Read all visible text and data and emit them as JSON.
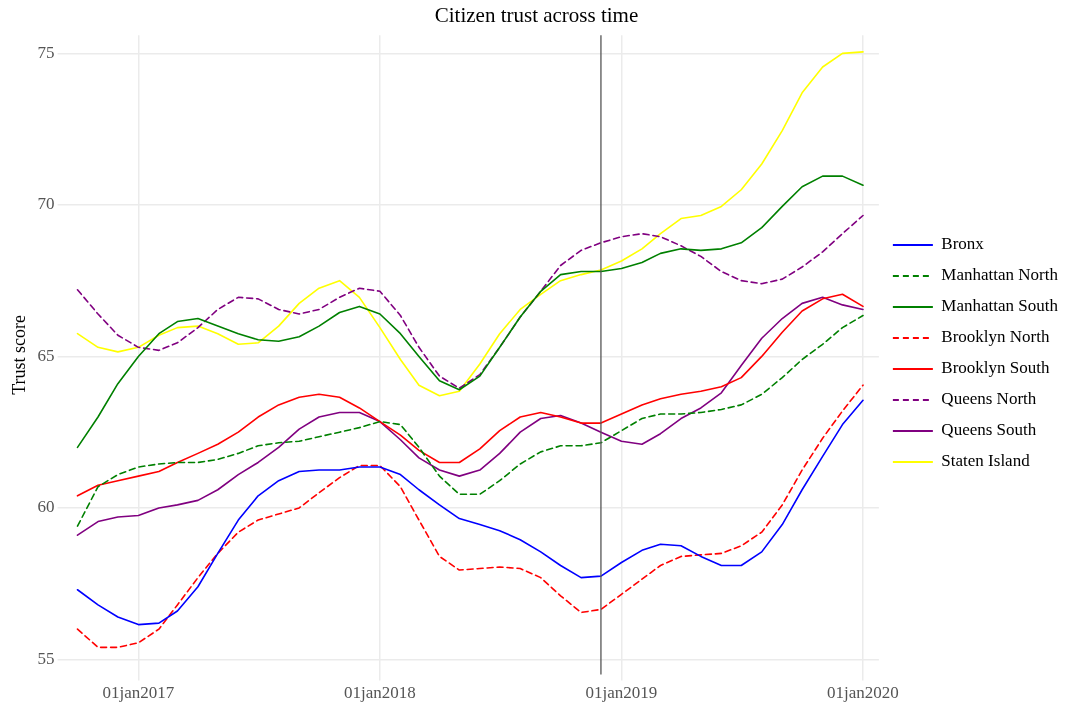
{
  "chart_data": {
    "type": "line",
    "title": "Citizen trust across time",
    "ylabel": "Trust score",
    "x": [
      "2016-10",
      "2016-11",
      "2016-12",
      "2017-01",
      "2017-02",
      "2017-03",
      "2017-04",
      "2017-05",
      "2017-06",
      "2017-07",
      "2017-08",
      "2017-09",
      "2017-10",
      "2017-11",
      "2017-12",
      "2018-01",
      "2018-02",
      "2018-03",
      "2018-04",
      "2018-05",
      "2018-06",
      "2018-07",
      "2018-08",
      "2018-09",
      "2018-10",
      "2018-11",
      "2018-12",
      "2019-01",
      "2019-02",
      "2019-03",
      "2019-04",
      "2019-05",
      "2019-06",
      "2019-07",
      "2019-08",
      "2019-09",
      "2019-10",
      "2019-11",
      "2019-12",
      "2020-01"
    ],
    "xlim": [
      "2016-09-10",
      "2020-01-25"
    ],
    "xticks": [
      {
        "value": "2017-01-01",
        "label": "01jan2017"
      },
      {
        "value": "2018-01-01",
        "label": "01jan2018"
      },
      {
        "value": "2019-01-01",
        "label": "01jan2019"
      },
      {
        "value": "2020-01-01",
        "label": "01jan2020"
      }
    ],
    "ylim": [
      54.5,
      75.6
    ],
    "yticks": [
      55,
      60,
      65,
      70,
      75
    ],
    "grid": true,
    "legend": "right",
    "marker": "none",
    "ref_lines": [
      {
        "axis": "x",
        "value": "2018-12",
        "color": "#555555"
      }
    ],
    "series": [
      {
        "name": "Bronx",
        "color": "#0000ff",
        "line_style": "solid",
        "values": [
          57.3,
          56.8,
          56.4,
          56.15,
          56.2,
          56.6,
          57.4,
          58.5,
          59.6,
          60.4,
          60.9,
          61.2,
          61.25,
          61.25,
          61.35,
          61.35,
          61.1,
          60.6,
          60.1,
          59.65,
          59.45,
          59.25,
          58.95,
          58.55,
          58.1,
          57.7,
          57.75,
          58.2,
          58.6,
          58.8,
          58.75,
          58.4,
          58.1,
          58.1,
          58.55,
          59.45,
          60.6,
          61.7,
          62.75,
          63.55
        ]
      },
      {
        "name": "Manhattan North",
        "color": "#008000",
        "line_style": "dashed",
        "values": [
          59.4,
          60.7,
          61.1,
          61.35,
          61.45,
          61.5,
          61.5,
          61.6,
          61.8,
          62.05,
          62.15,
          62.2,
          62.35,
          62.5,
          62.65,
          62.85,
          62.75,
          62.0,
          61.05,
          60.45,
          60.45,
          60.9,
          61.45,
          61.85,
          62.05,
          62.05,
          62.15,
          62.55,
          62.95,
          63.1,
          63.1,
          63.15,
          63.25,
          63.4,
          63.75,
          64.3,
          64.9,
          65.4,
          65.95,
          66.35
        ]
      },
      {
        "name": "Manhattan South",
        "color": "#008000",
        "line_style": "solid",
        "values": [
          62.0,
          63.0,
          64.1,
          65.0,
          65.75,
          66.15,
          66.25,
          66.0,
          65.75,
          65.55,
          65.5,
          65.65,
          66.0,
          66.45,
          66.65,
          66.4,
          65.75,
          65.0,
          64.2,
          63.9,
          64.35,
          65.3,
          66.3,
          67.15,
          67.7,
          67.8,
          67.8,
          67.9,
          68.1,
          68.4,
          68.55,
          68.5,
          68.55,
          68.75,
          69.25,
          69.95,
          70.6,
          70.95,
          70.95,
          70.65
        ]
      },
      {
        "name": "Brooklyn North",
        "color": "#ff0000",
        "line_style": "dashed",
        "values": [
          56.0,
          55.4,
          55.4,
          55.55,
          56.0,
          56.8,
          57.7,
          58.5,
          59.2,
          59.6,
          59.8,
          60.0,
          60.5,
          61.0,
          61.4,
          61.4,
          60.7,
          59.6,
          58.4,
          57.95,
          58.0,
          58.05,
          58.0,
          57.7,
          57.1,
          56.55,
          56.65,
          57.15,
          57.65,
          58.1,
          58.4,
          58.45,
          58.5,
          58.75,
          59.2,
          60.1,
          61.25,
          62.3,
          63.2,
          64.05
        ]
      },
      {
        "name": "Brooklyn South",
        "color": "#ff0000",
        "line_style": "solid",
        "values": [
          60.4,
          60.75,
          60.9,
          61.05,
          61.2,
          61.5,
          61.8,
          62.1,
          62.5,
          63.0,
          63.4,
          63.65,
          63.75,
          63.65,
          63.3,
          62.85,
          62.4,
          61.9,
          61.5,
          61.5,
          61.95,
          62.55,
          63.0,
          63.15,
          63.0,
          62.8,
          62.8,
          63.1,
          63.4,
          63.6,
          63.75,
          63.85,
          64.0,
          64.3,
          65.0,
          65.8,
          66.5,
          66.9,
          67.05,
          66.65
        ]
      },
      {
        "name": "Queens North",
        "color": "#800080",
        "line_style": "dashed",
        "values": [
          67.2,
          66.4,
          65.7,
          65.3,
          65.2,
          65.45,
          65.95,
          66.55,
          66.95,
          66.9,
          66.55,
          66.4,
          66.55,
          66.95,
          67.25,
          67.15,
          66.35,
          65.3,
          64.35,
          63.95,
          64.4,
          65.3,
          66.3,
          67.15,
          68.0,
          68.5,
          68.75,
          68.95,
          69.05,
          68.95,
          68.65,
          68.3,
          67.8,
          67.5,
          67.4,
          67.55,
          67.95,
          68.45,
          69.05,
          69.65
        ]
      },
      {
        "name": "Queens South",
        "color": "#800080",
        "line_style": "solid",
        "values": [
          59.1,
          59.55,
          59.7,
          59.75,
          60.0,
          60.1,
          60.25,
          60.6,
          61.1,
          61.5,
          62.0,
          62.6,
          63.0,
          63.15,
          63.15,
          62.85,
          62.25,
          61.65,
          61.25,
          61.05,
          61.25,
          61.8,
          62.5,
          62.95,
          63.05,
          62.8,
          62.5,
          62.2,
          62.1,
          62.45,
          62.95,
          63.3,
          63.8,
          64.7,
          65.6,
          66.25,
          66.75,
          66.95,
          66.7,
          66.55
        ]
      },
      {
        "name": "Staten Island",
        "color": "#ffff00",
        "line_style": "solid",
        "values": [
          65.75,
          65.3,
          65.15,
          65.3,
          65.7,
          65.95,
          66.0,
          65.75,
          65.4,
          65.45,
          66.0,
          66.75,
          67.25,
          67.5,
          66.95,
          65.95,
          64.9,
          64.05,
          63.7,
          63.85,
          64.75,
          65.75,
          66.55,
          67.05,
          67.5,
          67.7,
          67.85,
          68.15,
          68.55,
          69.05,
          69.55,
          69.65,
          69.95,
          70.5,
          71.35,
          72.45,
          73.7,
          74.55,
          75.0,
          75.05
        ]
      }
    ]
  }
}
